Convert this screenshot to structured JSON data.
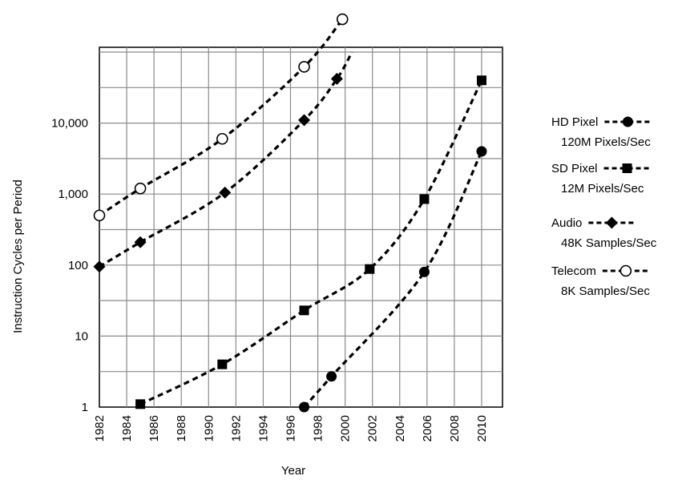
{
  "chart_data": {
    "type": "line",
    "title": "",
    "xlabel": "Year",
    "ylabel": "Instruction Cycles per Period",
    "y_scale": "log",
    "ylim": [
      1,
      100000
    ],
    "xlim": [
      1982,
      2011
    ],
    "grid": true,
    "legend_position": "right",
    "x_ticks": [
      "1982",
      "1984",
      "1986",
      "1988",
      "1990",
      "1992",
      "1994",
      "1996",
      "1998",
      "2000",
      "2002",
      "2004",
      "2006",
      "2008",
      "2010"
    ],
    "y_ticks": [
      {
        "value": 1,
        "label": "1"
      },
      {
        "value": 10,
        "label": "10"
      },
      {
        "value": 100,
        "label": "100"
      },
      {
        "value": 1000,
        "label": "1,000"
      },
      {
        "value": 10000,
        "label": "10,000"
      }
    ],
    "series": [
      {
        "name": "HD Pixel",
        "subtitle": "120M Pixels/Sec",
        "marker": "circle-filled",
        "points": [
          {
            "x": 1997,
            "y": 1
          },
          {
            "x": 1999,
            "y": 2.7
          },
          {
            "x": 2005.8,
            "y": 80
          },
          {
            "x": 2010,
            "y": 4000
          }
        ]
      },
      {
        "name": "SD Pixel",
        "subtitle": "12M Pixels/Sec",
        "marker": "square-filled",
        "points": [
          {
            "x": 1985,
            "y": 1.1
          },
          {
            "x": 1991,
            "y": 4
          },
          {
            "x": 1997,
            "y": 23
          },
          {
            "x": 2001.8,
            "y": 88
          },
          {
            "x": 2005.8,
            "y": 850
          },
          {
            "x": 2010,
            "y": 40000
          }
        ]
      },
      {
        "name": "Audio",
        "subtitle": "48K Samples/Sec",
        "marker": "diamond-filled",
        "points": [
          {
            "x": 1982,
            "y": 95
          },
          {
            "x": 1985,
            "y": 210
          },
          {
            "x": 1991.2,
            "y": 1050
          },
          {
            "x": 1997,
            "y": 11000
          },
          {
            "x": 1999.4,
            "y": 42000
          }
        ]
      },
      {
        "name": "Telecom",
        "subtitle": "8K Samples/Sec",
        "marker": "circle-open",
        "points": [
          {
            "x": 1982,
            "y": 500
          },
          {
            "x": 1985,
            "y": 1200
          },
          {
            "x": 1991,
            "y": 6000
          },
          {
            "x": 1997,
            "y": 62000
          },
          {
            "x": 1999.8,
            "y": 290000
          }
        ]
      }
    ]
  }
}
